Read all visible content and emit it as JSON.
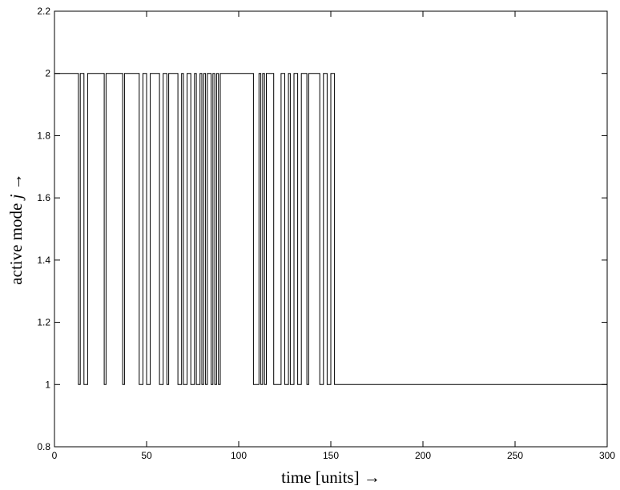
{
  "chart_data": {
    "type": "line",
    "title": "",
    "xlabel": "time  [units]  →",
    "ylabel_prefix": "active mode ",
    "ylabel_var": "j",
    "ylabel_suffix": "  →",
    "xlim": [
      0,
      300
    ],
    "ylim": [
      0.8,
      2.2
    ],
    "xticks": [
      0,
      50,
      100,
      150,
      200,
      250,
      300
    ],
    "yticks": [
      0.8,
      1,
      1.2,
      1.4,
      1.6,
      1.8,
      2,
      2.2
    ],
    "ytick_labels": [
      "0.8",
      "1",
      "1.2",
      "1.4",
      "1.6",
      "1.8",
      "2",
      "2.2"
    ],
    "grid": false,
    "step": true,
    "series": [
      {
        "switch_times": [
          0,
          13,
          14,
          16,
          18,
          27,
          28,
          37,
          38,
          46,
          48,
          50,
          52,
          57,
          59,
          61,
          62,
          67,
          69,
          70,
          72,
          74,
          76,
          77,
          79,
          80,
          81,
          82,
          83,
          85,
          86,
          87,
          88,
          89,
          90,
          108,
          111,
          112,
          113,
          114,
          115,
          119,
          123,
          125,
          127,
          128,
          130,
          132,
          134,
          137,
          138,
          144,
          146,
          148,
          150,
          152,
          300
        ],
        "modes": [
          2,
          1,
          2,
          1,
          2,
          1,
          2,
          1,
          2,
          1,
          2,
          1,
          2,
          1,
          2,
          1,
          2,
          1,
          2,
          1,
          2,
          1,
          2,
          1,
          2,
          1,
          2,
          1,
          2,
          1,
          2,
          1,
          2,
          1,
          2,
          1,
          2,
          1,
          2,
          1,
          2,
          1,
          2,
          1,
          2,
          1,
          2,
          1,
          2,
          1,
          2,
          1,
          2,
          1,
          2,
          1
        ]
      }
    ]
  }
}
